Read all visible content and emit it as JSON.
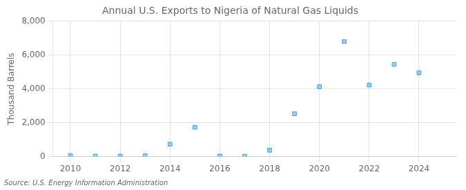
{
  "chart_data": {
    "type": "scatter",
    "title": "Annual U.S. Exports to Nigeria of Natural Gas Liquids",
    "ylabel": "Thousand Barrels",
    "source": "Source: U.S. Energy Information Administration",
    "x": [
      2010,
      2011,
      2012,
      2013,
      2014,
      2015,
      2016,
      2017,
      2018,
      2019,
      2020,
      2021,
      2022,
      2023,
      2024
    ],
    "values": [
      60,
      30,
      30,
      50,
      730,
      1730,
      30,
      20,
      380,
      2530,
      4130,
      6800,
      4230,
      5450,
      4950
    ],
    "marker": "square",
    "xlim": [
      2009.3,
      2025.5
    ],
    "xticks": [
      2010,
      2012,
      2014,
      2016,
      2018,
      2020,
      2022,
      2024
    ],
    "ylim": [
      0,
      8000
    ],
    "yticks": [
      0,
      {
        "value": 2000,
        "label": "2,000"
      },
      {
        "value": 4000,
        "label": "4,000"
      },
      {
        "value": 6000,
        "label": "6,000"
      },
      {
        "value": 8000,
        "label": "8,000"
      }
    ],
    "grid": true
  }
}
